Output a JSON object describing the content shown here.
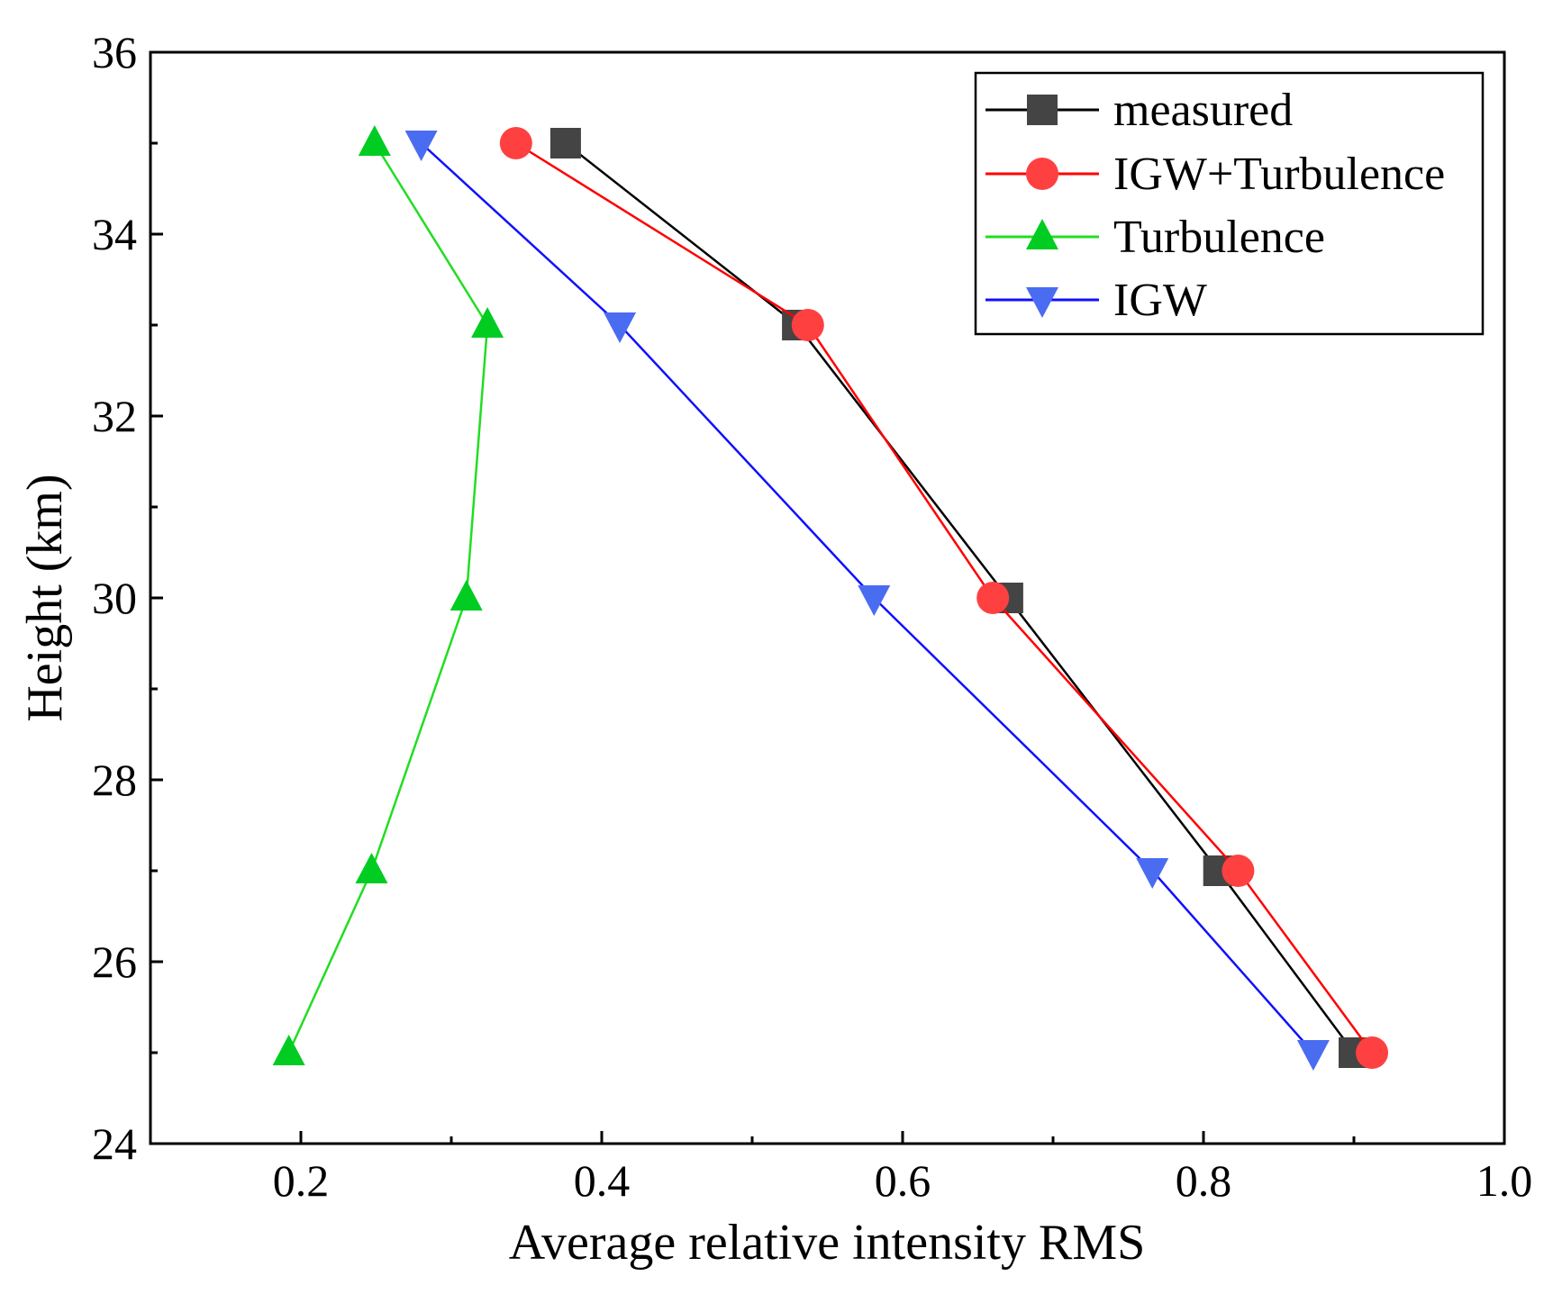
{
  "chart_data": {
    "type": "line",
    "title": "",
    "xlabel": "Average relative intensity RMS",
    "ylabel": "Height (km)",
    "xlim": [
      0.1,
      1.0
    ],
    "ylim": [
      24,
      36
    ],
    "xticks": [
      0.2,
      0.4,
      0.6,
      0.8,
      1.0
    ],
    "xtick_labels": [
      "0.2",
      "0.4",
      "0.6",
      "0.8",
      "1.0"
    ],
    "yticks": [
      24,
      26,
      28,
      30,
      32,
      34,
      36
    ],
    "ytick_labels": [
      "24",
      "26",
      "28",
      "30",
      "32",
      "34",
      "36"
    ],
    "grid": false,
    "legend_position": "top-right",
    "series": [
      {
        "name": "measured",
        "marker": "square",
        "line_color": "#000000",
        "marker_color": "#444444",
        "points": [
          [
            0.376,
            35
          ],
          [
            0.53,
            33
          ],
          [
            0.67,
            30
          ],
          [
            0.81,
            27
          ],
          [
            0.9,
            25
          ]
        ]
      },
      {
        "name": "IGW+Turbulence",
        "marker": "circle",
        "line_color": "#ff0000",
        "marker_color": "#ff4040",
        "points": [
          [
            0.343,
            35
          ],
          [
            0.537,
            33
          ],
          [
            0.66,
            30
          ],
          [
            0.823,
            27
          ],
          [
            0.912,
            25
          ]
        ]
      },
      {
        "name": "Turbulence",
        "marker": "triangle-up",
        "line_color": "#22dd22",
        "marker_color": "#00cc22",
        "points": [
          [
            0.249,
            35
          ],
          [
            0.324,
            33
          ],
          [
            0.31,
            30
          ],
          [
            0.247,
            27
          ],
          [
            0.192,
            25
          ]
        ]
      },
      {
        "name": "IGW",
        "marker": "triangle-down",
        "line_color": "#1010ff",
        "marker_color": "#4a6cf0",
        "points": [
          [
            0.28,
            35
          ],
          [
            0.412,
            33
          ],
          [
            0.581,
            30
          ],
          [
            0.766,
            27
          ],
          [
            0.873,
            25
          ]
        ]
      }
    ]
  }
}
